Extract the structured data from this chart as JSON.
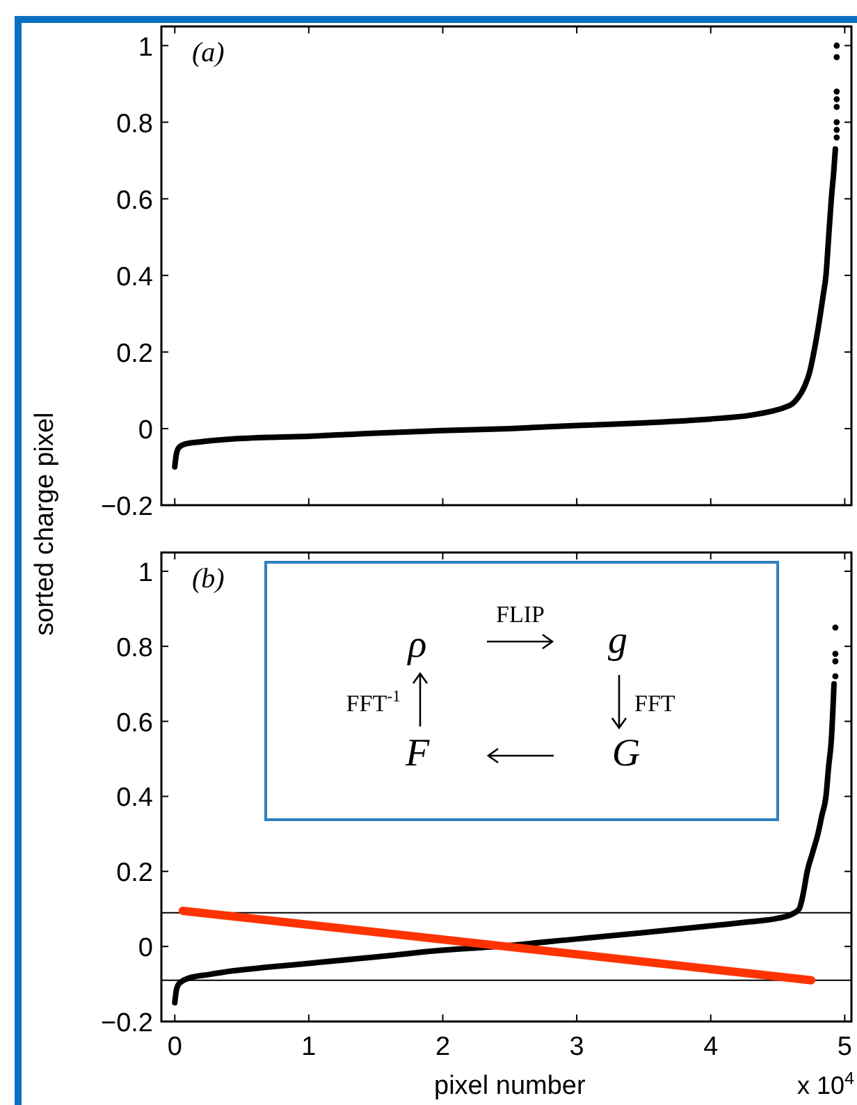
{
  "chart_data": [
    {
      "type": "line",
      "ylabel": "sorted charge pixel",
      "annotations": [
        "(a)"
      ],
      "xlim": [
        -0.1,
        5.05
      ],
      "xticks": [
        {
          "value": 0,
          "label": null
        },
        {
          "value": 1,
          "label": null
        },
        {
          "value": 2,
          "label": null
        },
        {
          "value": 3,
          "label": null
        },
        {
          "value": 4,
          "label": null
        },
        {
          "value": 5,
          "label": null
        }
      ],
      "ylim": [
        -0.2,
        1.05
      ],
      "yticks": [
        -0.2,
        0,
        0.2,
        0.4,
        0.6,
        0.8,
        1
      ],
      "tick_labels": "y",
      "series": [
        {
          "color": "#000000",
          "x": [
            0,
            0.01,
            0.03,
            0.08,
            0.18,
            0.4,
            0.7,
            1,
            1.5,
            2,
            2.5,
            3,
            3.5,
            4,
            4.3,
            4.45,
            4.55,
            4.61,
            4.65,
            4.7,
            4.74,
            4.77,
            4.81,
            4.84,
            4.86,
            4.88,
            4.9,
            4.92,
            4.93
          ],
          "values": [
            -0.1,
            -0.07,
            -0.05,
            -0.04,
            -0.035,
            -0.028,
            -0.023,
            -0.02,
            -0.012,
            -0.005,
            0,
            0.008,
            0.015,
            0.025,
            0.035,
            0.045,
            0.055,
            0.065,
            0.08,
            0.11,
            0.15,
            0.2,
            0.28,
            0.35,
            0.4,
            0.5,
            0.6,
            0.68,
            0.73
          ]
        },
        {
          "type": "scatter",
          "marker": "circle",
          "color": "#000000",
          "x": [
            4.94,
            4.94,
            4.94,
            4.94,
            4.94,
            4.94,
            4.94,
            4.94
          ],
          "values": [
            0.76,
            0.78,
            0.8,
            0.84,
            0.86,
            0.88,
            0.97,
            1.0
          ]
        }
      ]
    },
    {
      "type": "line",
      "xlabel": "pixel number",
      "annotations": [
        "(b)",
        "x 10$^{4}$",
        "ρ",
        "FLIP",
        "g",
        "FFT$^{-1}$",
        "FFT",
        "F",
        "G"
      ],
      "xlim": [
        -0.1,
        5.05
      ],
      "xticks": [
        0,
        1,
        2,
        3,
        4,
        5
      ],
      "ylim": [
        -0.2,
        1.05
      ],
      "yticks": [
        -0.2,
        0,
        0.2,
        0.4,
        0.6,
        0.8,
        1
      ],
      "ref_lines": [
        {
          "axis": "y",
          "value": 0.09,
          "color": "#000000"
        },
        {
          "axis": "y",
          "value": -0.09,
          "color": "#000000"
        }
      ],
      "series": [
        {
          "color": "#000000",
          "x": [
            0,
            0.01,
            0.03,
            0.1,
            0.25,
            0.43,
            0.7,
            1,
            1.5,
            2,
            2.4,
            3,
            3.5,
            4,
            4.3,
            4.5,
            4.6,
            4.66,
            4.69,
            4.72,
            4.76,
            4.8,
            4.83,
            4.86,
            4.88,
            4.9,
            4.92
          ],
          "values": [
            -0.15,
            -0.12,
            -0.1,
            -0.085,
            -0.075,
            -0.065,
            -0.055,
            -0.045,
            -0.028,
            -0.01,
            0,
            0.02,
            0.037,
            0.055,
            0.066,
            0.075,
            0.085,
            0.1,
            0.14,
            0.2,
            0.25,
            0.3,
            0.35,
            0.4,
            0.48,
            0.55,
            0.7
          ]
        },
        {
          "type": "scatter",
          "marker": "circle",
          "color": "#000000",
          "x": [
            4.93,
            4.93,
            4.93,
            4.93
          ],
          "values": [
            0.72,
            0.76,
            0.78,
            0.85
          ]
        },
        {
          "color": "#ff3300",
          "x": [
            0.06,
            4.75
          ],
          "values": [
            0.095,
            -0.09
          ]
        }
      ]
    }
  ]
}
